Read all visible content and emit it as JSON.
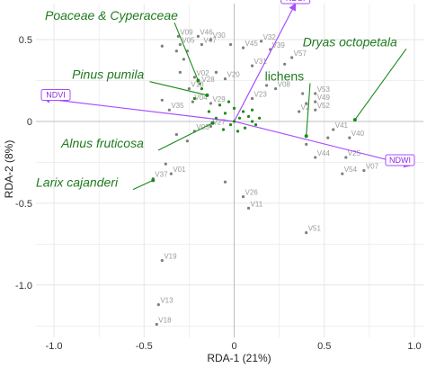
{
  "chart_data": {
    "type": "scatter",
    "xlabel": "RDA-1 (21%)",
    "ylabel": "RDA-2 (8%)",
    "xlim": [
      -1.1,
      1.05
    ],
    "ylim": [
      -1.32,
      0.72
    ],
    "xticks": [
      {
        "value": -1.0,
        "label": "-1.0"
      },
      {
        "value": -0.5,
        "label": "-0.5"
      },
      {
        "value": 0.0,
        "label": "0"
      },
      {
        "value": 0.5,
        "label": "0.5"
      },
      {
        "value": 1.0,
        "label": "1.0"
      }
    ],
    "yticks": [
      {
        "value": 0.5,
        "label": "0.5"
      },
      {
        "value": 0.0,
        "label": "0"
      },
      {
        "value": -0.5,
        "label": "-0.5"
      },
      {
        "value": -1.0,
        "label": "-1.0"
      }
    ],
    "grid": true,
    "zero_lines": true,
    "colors": {
      "background": "#ffffff",
      "grid": "#e6e6e6",
      "zero_line": "#bdbdbd",
      "sites": "#7f7f7f",
      "site_labels": "#9a9a9a",
      "species": "#1a8a1a",
      "species_labels": "#1f7a1f",
      "indices": "#a64dff",
      "index_labels": "#8a2be2"
    },
    "sites": [
      {
        "label": "V09",
        "x": -0.31,
        "y": 0.52
      },
      {
        "label": "V05",
        "x": -0.3,
        "y": 0.47
      },
      {
        "label": "V46",
        "x": -0.2,
        "y": 0.52
      },
      {
        "label": "V47",
        "x": -0.18,
        "y": 0.47
      },
      {
        "label": "V30",
        "x": -0.13,
        "y": 0.5
      },
      {
        "label": "",
        "x": -0.32,
        "y": 0.43
      },
      {
        "label": "",
        "x": -0.26,
        "y": 0.43
      },
      {
        "label": "",
        "x": -0.28,
        "y": 0.38
      },
      {
        "label": "",
        "x": -0.4,
        "y": 0.46
      },
      {
        "label": "V45",
        "x": 0.05,
        "y": 0.45
      },
      {
        "label": "",
        "x": -0.02,
        "y": 0.47
      },
      {
        "label": "V32",
        "x": 0.15,
        "y": 0.49
      },
      {
        "label": "V39",
        "x": 0.2,
        "y": 0.44
      },
      {
        "label": "V31",
        "x": 0.1,
        "y": 0.34
      },
      {
        "label": "V57",
        "x": 0.32,
        "y": 0.39
      },
      {
        "label": "",
        "x": 0.28,
        "y": 0.35
      },
      {
        "label": "V10",
        "x": -0.25,
        "y": 0.2
      },
      {
        "label": "V02",
        "x": -0.22,
        "y": 0.27
      },
      {
        "label": "V28",
        "x": -0.19,
        "y": 0.23
      },
      {
        "label": "V20",
        "x": -0.05,
        "y": 0.26
      },
      {
        "label": "",
        "x": -0.1,
        "y": 0.3
      },
      {
        "label": "",
        "x": -0.3,
        "y": 0.3
      },
      {
        "label": "V04",
        "x": -0.23,
        "y": 0.12
      },
      {
        "label": "V29",
        "x": -0.13,
        "y": 0.11
      },
      {
        "label": "V35",
        "x": -0.36,
        "y": 0.07
      },
      {
        "label": "",
        "x": -0.4,
        "y": 0.13
      },
      {
        "label": "V23",
        "x": 0.1,
        "y": 0.14
      },
      {
        "label": "V08",
        "x": 0.23,
        "y": 0.2
      },
      {
        "label": "",
        "x": 0.18,
        "y": 0.22
      },
      {
        "label": "V53",
        "x": 0.45,
        "y": 0.17
      },
      {
        "label": "V49",
        "x": 0.45,
        "y": 0.12
      },
      {
        "label": "V52",
        "x": 0.45,
        "y": 0.07
      },
      {
        "label": "V2",
        "x": 0.36,
        "y": 0.06
      },
      {
        "label": "",
        "x": 0.4,
        "y": 0.11
      },
      {
        "label": "",
        "x": 0.38,
        "y": 0.17
      },
      {
        "label": "V03",
        "x": -0.22,
        "y": -0.06
      },
      {
        "label": "V27",
        "x": -0.13,
        "y": -0.03
      },
      {
        "label": "",
        "x": -0.32,
        "y": -0.08
      },
      {
        "label": "",
        "x": -0.26,
        "y": -0.12
      },
      {
        "label": "V41",
        "x": 0.55,
        "y": -0.05
      },
      {
        "label": "V40",
        "x": 0.64,
        "y": -0.1
      },
      {
        "label": "V44",
        "x": 0.45,
        "y": -0.22
      },
      {
        "label": "V25",
        "x": 0.62,
        "y": -0.22
      },
      {
        "label": "V54",
        "x": 0.6,
        "y": -0.32
      },
      {
        "label": "V07",
        "x": 0.72,
        "y": -0.3
      },
      {
        "label": "",
        "x": 0.52,
        "y": -0.1
      },
      {
        "label": "",
        "x": 0.4,
        "y": -0.14
      },
      {
        "label": "V01",
        "x": -0.35,
        "y": -0.32
      },
      {
        "label": "V37",
        "x": -0.45,
        "y": -0.35
      },
      {
        "label": "",
        "x": -0.38,
        "y": -0.26
      },
      {
        "label": "V26",
        "x": 0.05,
        "y": -0.46
      },
      {
        "label": "V11",
        "x": 0.08,
        "y": -0.53
      },
      {
        "label": "",
        "x": -0.05,
        "y": -0.37
      },
      {
        "label": "V51",
        "x": 0.4,
        "y": -0.68
      },
      {
        "label": "V19",
        "x": -0.4,
        "y": -0.85
      },
      {
        "label": "V13",
        "x": -0.42,
        "y": -1.12
      },
      {
        "label": "V18",
        "x": -0.43,
        "y": -1.24
      }
    ],
    "species": [
      {
        "name": "Poaceae & Cyperaceae",
        "x": -0.2,
        "y": 0.25,
        "lx": -1.05,
        "ly": 0.62,
        "italic": true
      },
      {
        "name": "Dryas octopetala",
        "x": 0.67,
        "y": 0.01,
        "lx": 0.38,
        "ly": 0.46,
        "italic": true
      },
      {
        "name": "Pinus pumila",
        "x": -0.15,
        "y": 0.16,
        "lx": -0.9,
        "ly": 0.26,
        "italic": true
      },
      {
        "name": "lichens",
        "x": 0.4,
        "y": -0.09,
        "lx": 0.17,
        "ly": 0.25,
        "italic": false
      },
      {
        "name": "Alnus fruticosa",
        "x": -0.12,
        "y": -0.01,
        "lx": -0.96,
        "ly": -0.16,
        "italic": true
      },
      {
        "name": "Larix cajanderi",
        "x": -0.45,
        "y": -0.36,
        "lx": -1.1,
        "ly": -0.4,
        "italic": true
      }
    ],
    "other_species": [
      {
        "x": -0.05,
        "y": 0.05
      },
      {
        "x": 0.0,
        "y": 0.08
      },
      {
        "x": 0.03,
        "y": 0.02
      },
      {
        "x": -0.02,
        "y": -0.02
      },
      {
        "x": 0.06,
        "y": -0.04
      },
      {
        "x": 0.1,
        "y": 0.0
      },
      {
        "x": -0.08,
        "y": 0.1
      },
      {
        "x": 0.12,
        "y": -0.02
      },
      {
        "x": 0.05,
        "y": 0.06
      },
      {
        "x": -0.1,
        "y": 0.02
      },
      {
        "x": 0.02,
        "y": -0.06
      },
      {
        "x": 0.08,
        "y": 0.03
      },
      {
        "x": -0.03,
        "y": 0.12
      },
      {
        "x": 0.14,
        "y": 0.02
      },
      {
        "x": -0.06,
        "y": -0.05
      },
      {
        "x": 0.0,
        "y": 0.0
      },
      {
        "x": -0.14,
        "y": 0.06
      },
      {
        "x": 0.1,
        "y": 0.07
      },
      {
        "x": -0.22,
        "y": 0.14
      },
      {
        "x": -0.18,
        "y": 0.2
      }
    ],
    "indices": [
      {
        "name": "NDSI",
        "x": 0.34,
        "y": 0.72
      },
      {
        "name": "NDVI",
        "x": -1.06,
        "y": 0.14
      },
      {
        "name": "NDWI",
        "x": 0.98,
        "y": -0.27
      }
    ]
  }
}
